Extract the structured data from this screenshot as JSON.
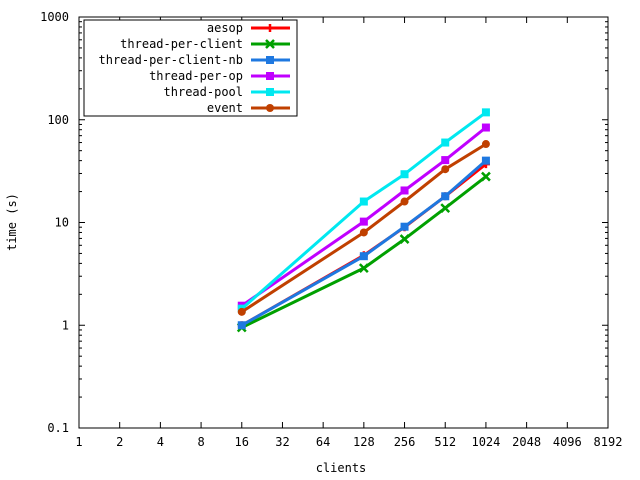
{
  "chart_data": {
    "type": "line",
    "title": "",
    "xlabel": "clients",
    "ylabel": "time (s)",
    "xscale": "log2",
    "yscale": "log10",
    "x_ticks": [
      1,
      2,
      4,
      8,
      16,
      32,
      64,
      128,
      256,
      512,
      1024,
      2048,
      4096,
      8192
    ],
    "x_tick_labels": [
      "1",
      "2",
      "4",
      "8",
      "16",
      "32",
      "64",
      "128",
      "256",
      "512",
      "1024",
      "2048",
      "4096",
      "8192"
    ],
    "y_ticks": [
      0.1,
      1,
      10,
      100,
      1000
    ],
    "y_tick_labels": [
      "0.1",
      "1",
      "10",
      "100",
      "1000"
    ],
    "xlim": [
      1,
      8192
    ],
    "ylim": [
      0.1,
      1000
    ],
    "grid": false,
    "legend_position": "top-left",
    "x": [
      16,
      128,
      256,
      512,
      1024
    ],
    "series": [
      {
        "name": "aesop",
        "color": "#ff0000",
        "marker": "plus",
        "values": [
          1.0,
          4.8,
          9.0,
          18,
          37
        ]
      },
      {
        "name": "thread-per-client",
        "color": "#00a000",
        "marker": "cross",
        "values": [
          0.95,
          3.6,
          6.9,
          13.8,
          28
        ]
      },
      {
        "name": "thread-per-client-nb",
        "color": "#1e78e0",
        "marker": "square",
        "values": [
          1.0,
          4.7,
          9.1,
          18,
          40
        ]
      },
      {
        "name": "thread-per-op",
        "color": "#c000ff",
        "marker": "square",
        "values": [
          1.55,
          10.2,
          20.5,
          40.5,
          84
        ]
      },
      {
        "name": "thread-pool",
        "color": "#00e8f0",
        "marker": "square",
        "values": [
          1.45,
          16,
          29.5,
          60,
          118
        ]
      },
      {
        "name": "event",
        "color": "#c04000",
        "marker": "circle",
        "values": [
          1.35,
          8.0,
          16,
          33,
          58
        ]
      }
    ]
  }
}
